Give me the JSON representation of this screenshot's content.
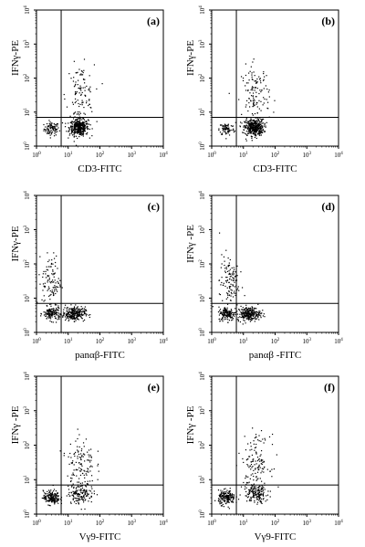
{
  "figure": {
    "panels": [
      {
        "label": "(a)",
        "xlabel": "CD3-FITC",
        "ylabel": "IFNγ-PE"
      },
      {
        "label": "(b)",
        "xlabel": "CD3-FITC",
        "ylabel": "IFNγ-PE"
      },
      {
        "label": "(c)",
        "xlabel": "panαβ-FITC",
        "ylabel": "IFNγ-PE"
      },
      {
        "label": "(d)",
        "xlabel": "panαβ -FITC",
        "ylabel": "IFNγ -PE"
      },
      {
        "label": "(e)",
        "xlabel": "Vγ9-FITC",
        "ylabel": "IFNγ -PE"
      },
      {
        "label": "(f)",
        "xlabel": "Vγ9-FITC",
        "ylabel": "IFNγ -PE"
      }
    ]
  },
  "chart_data": [
    {
      "type": "scatter",
      "panel": "(a)",
      "xlabel": "CD3-FITC",
      "ylabel": "IFNγ-PE",
      "x_scale": "log",
      "y_scale": "log",
      "xlim": [
        1,
        10000
      ],
      "ylim": [
        1,
        10000
      ],
      "xticks": [
        "10^0",
        "10^1",
        "10^2",
        "10^3",
        "10^4"
      ],
      "yticks": [
        "10^0",
        "10^1",
        "10^2",
        "10^3",
        "10^4"
      ],
      "quadrant_gate": {
        "x": 6,
        "y": 7
      },
      "clusters": [
        {
          "center": [
            3,
            3.2
          ],
          "spread": [
            0.12,
            0.1
          ],
          "count": 90
        },
        {
          "center": [
            22,
            3.5
          ],
          "spread": [
            0.15,
            0.12
          ],
          "count": 380
        },
        {
          "center": [
            24,
            30
          ],
          "spread": [
            0.22,
            0.45
          ],
          "count": 120
        }
      ]
    },
    {
      "type": "scatter",
      "panel": "(b)",
      "xlabel": "CD3-FITC",
      "ylabel": "IFNγ-PE",
      "x_scale": "log",
      "y_scale": "log",
      "xlim": [
        1,
        10000
      ],
      "ylim": [
        1,
        10000
      ],
      "xticks": [
        "10^0",
        "10^1",
        "10^2",
        "10^3",
        "10^4"
      ],
      "yticks": [
        "10^0",
        "10^1",
        "10^2",
        "10^3",
        "10^4"
      ],
      "quadrant_gate": {
        "x": 6,
        "y": 7
      },
      "clusters": [
        {
          "center": [
            3,
            3.2
          ],
          "spread": [
            0.12,
            0.1
          ],
          "count": 80
        },
        {
          "center": [
            22,
            3.5
          ],
          "spread": [
            0.15,
            0.12
          ],
          "count": 380
        },
        {
          "center": [
            24,
            30
          ],
          "spread": [
            0.22,
            0.45
          ],
          "count": 140
        }
      ]
    },
    {
      "type": "scatter",
      "panel": "(c)",
      "xlabel": "panαβ-FITC",
      "ylabel": "IFNγ-PE",
      "x_scale": "log",
      "y_scale": "log",
      "xlim": [
        1,
        10000
      ],
      "ylim": [
        1,
        10000
      ],
      "xticks": [
        "10^0",
        "10^1",
        "10^2",
        "10^3",
        "10^4"
      ],
      "yticks": [
        "10^0",
        "10^1",
        "10^2",
        "10^3",
        "10^4"
      ],
      "quadrant_gate": {
        "x": 6,
        "y": 7
      },
      "clusters": [
        {
          "center": [
            3,
            3.5
          ],
          "spread": [
            0.13,
            0.1
          ],
          "count": 140
        },
        {
          "center": [
            15,
            3.5
          ],
          "spread": [
            0.18,
            0.1
          ],
          "count": 260
        },
        {
          "center": [
            3,
            30
          ],
          "spread": [
            0.15,
            0.4
          ],
          "count": 110
        }
      ]
    },
    {
      "type": "scatter",
      "panel": "(d)",
      "xlabel": "panαβ -FITC",
      "ylabel": "IFNγ -PE",
      "x_scale": "log",
      "y_scale": "log",
      "xlim": [
        1,
        10000
      ],
      "ylim": [
        1,
        10000
      ],
      "xticks": [
        "10^0",
        "10^1",
        "10^2",
        "10^3",
        "10^4"
      ],
      "yticks": [
        "10^0",
        "10^1",
        "10^2",
        "10^3",
        "10^4"
      ],
      "quadrant_gate": {
        "x": 6,
        "y": 7
      },
      "clusters": [
        {
          "center": [
            3,
            3.5
          ],
          "spread": [
            0.13,
            0.1
          ],
          "count": 150
        },
        {
          "center": [
            15,
            3.5
          ],
          "spread": [
            0.18,
            0.1
          ],
          "count": 250
        },
        {
          "center": [
            3.5,
            30
          ],
          "spread": [
            0.15,
            0.4
          ],
          "count": 120
        }
      ]
    },
    {
      "type": "scatter",
      "panel": "(e)",
      "xlabel": "Vγ9-FITC",
      "ylabel": "IFNγ -PE",
      "x_scale": "log",
      "y_scale": "log",
      "xlim": [
        1,
        10000
      ],
      "ylim": [
        1,
        10000
      ],
      "xticks": [
        "10^0",
        "10^1",
        "10^2",
        "10^3",
        "10^4"
      ],
      "yticks": [
        "10^0",
        "10^1",
        "10^2",
        "10^3",
        "10^4"
      ],
      "quadrant_gate": {
        "x": 6,
        "y": 7
      },
      "clusters": [
        {
          "center": [
            3,
            3
          ],
          "spread": [
            0.13,
            0.1
          ],
          "count": 180
        },
        {
          "center": [
            25,
            4
          ],
          "spread": [
            0.2,
            0.15
          ],
          "count": 150
        },
        {
          "center": [
            25,
            30
          ],
          "spread": [
            0.22,
            0.4
          ],
          "count": 120
        }
      ]
    },
    {
      "type": "scatter",
      "panel": "(f)",
      "xlabel": "Vγ9-FITC",
      "ylabel": "IFNγ -PE",
      "x_scale": "log",
      "y_scale": "log",
      "xlim": [
        1,
        10000
      ],
      "ylim": [
        1,
        10000
      ],
      "xticks": [
        "10^0",
        "10^1",
        "10^2",
        "10^3",
        "10^4"
      ],
      "yticks": [
        "10^0",
        "10^1",
        "10^2",
        "10^3",
        "10^4"
      ],
      "quadrant_gate": {
        "x": 6,
        "y": 7
      },
      "clusters": [
        {
          "center": [
            3,
            3
          ],
          "spread": [
            0.13,
            0.1
          ],
          "count": 180
        },
        {
          "center": [
            25,
            4
          ],
          "spread": [
            0.2,
            0.15
          ],
          "count": 160
        },
        {
          "center": [
            25,
            30
          ],
          "spread": [
            0.22,
            0.4
          ],
          "count": 140
        }
      ]
    }
  ]
}
